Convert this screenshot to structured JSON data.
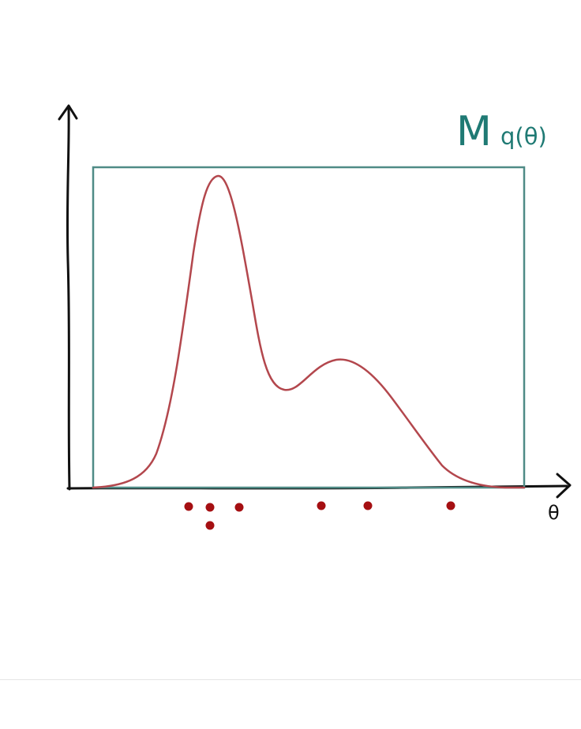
{
  "diagram": {
    "box_label_main": "M",
    "box_label_sub": "q(θ)",
    "x_axis_label": "θ",
    "colors": {
      "axes": "#111111",
      "box": "#4f8b86",
      "curve": "#b3474d",
      "samples": "#a50f12",
      "label": "#1f7a74",
      "divider": "#e5e5e5"
    },
    "sample_count": 7
  }
}
